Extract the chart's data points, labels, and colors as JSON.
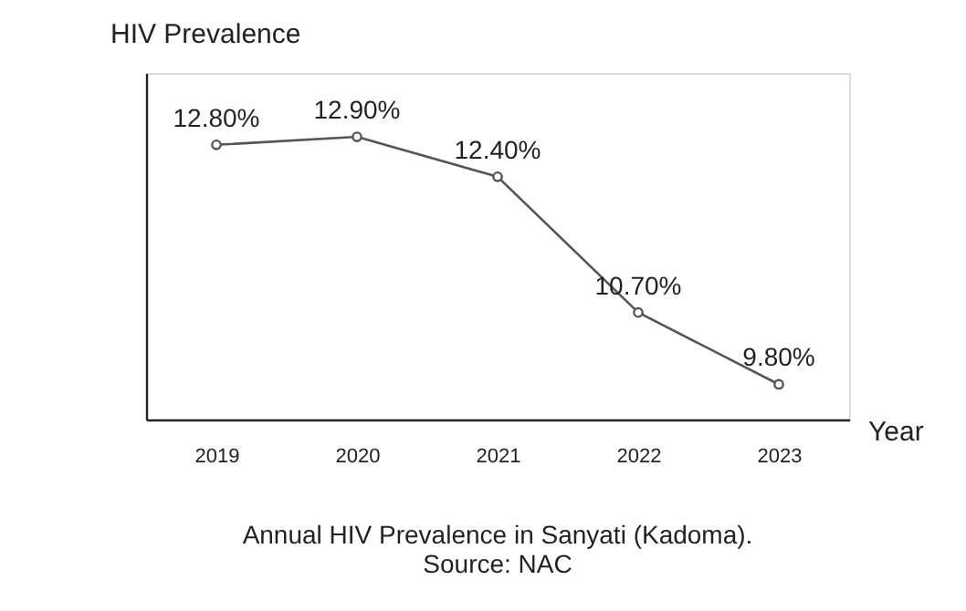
{
  "chart_data": {
    "type": "line",
    "xlabel": "Year",
    "ylabel": "HIV Prevalence",
    "title": "Annual HIV Prevalence in Sanyati (Kadoma).",
    "annotations": [
      "Source: NAC"
    ],
    "categories": [
      "2019",
      "2020",
      "2021",
      "2022",
      "2023"
    ],
    "series": [
      {
        "color": "#555555",
        "values": [
          12.8,
          12.9,
          12.4,
          10.7,
          9.8
        ],
        "value_labels": [
          "12.80%",
          "12.90%",
          "12.40%",
          "10.70%",
          "9.80%"
        ]
      }
    ],
    "ylim": [
      9.36,
      13.7
    ],
    "tick_labels": "x",
    "grid": false,
    "marker": "circle",
    "line_style": "solid"
  }
}
